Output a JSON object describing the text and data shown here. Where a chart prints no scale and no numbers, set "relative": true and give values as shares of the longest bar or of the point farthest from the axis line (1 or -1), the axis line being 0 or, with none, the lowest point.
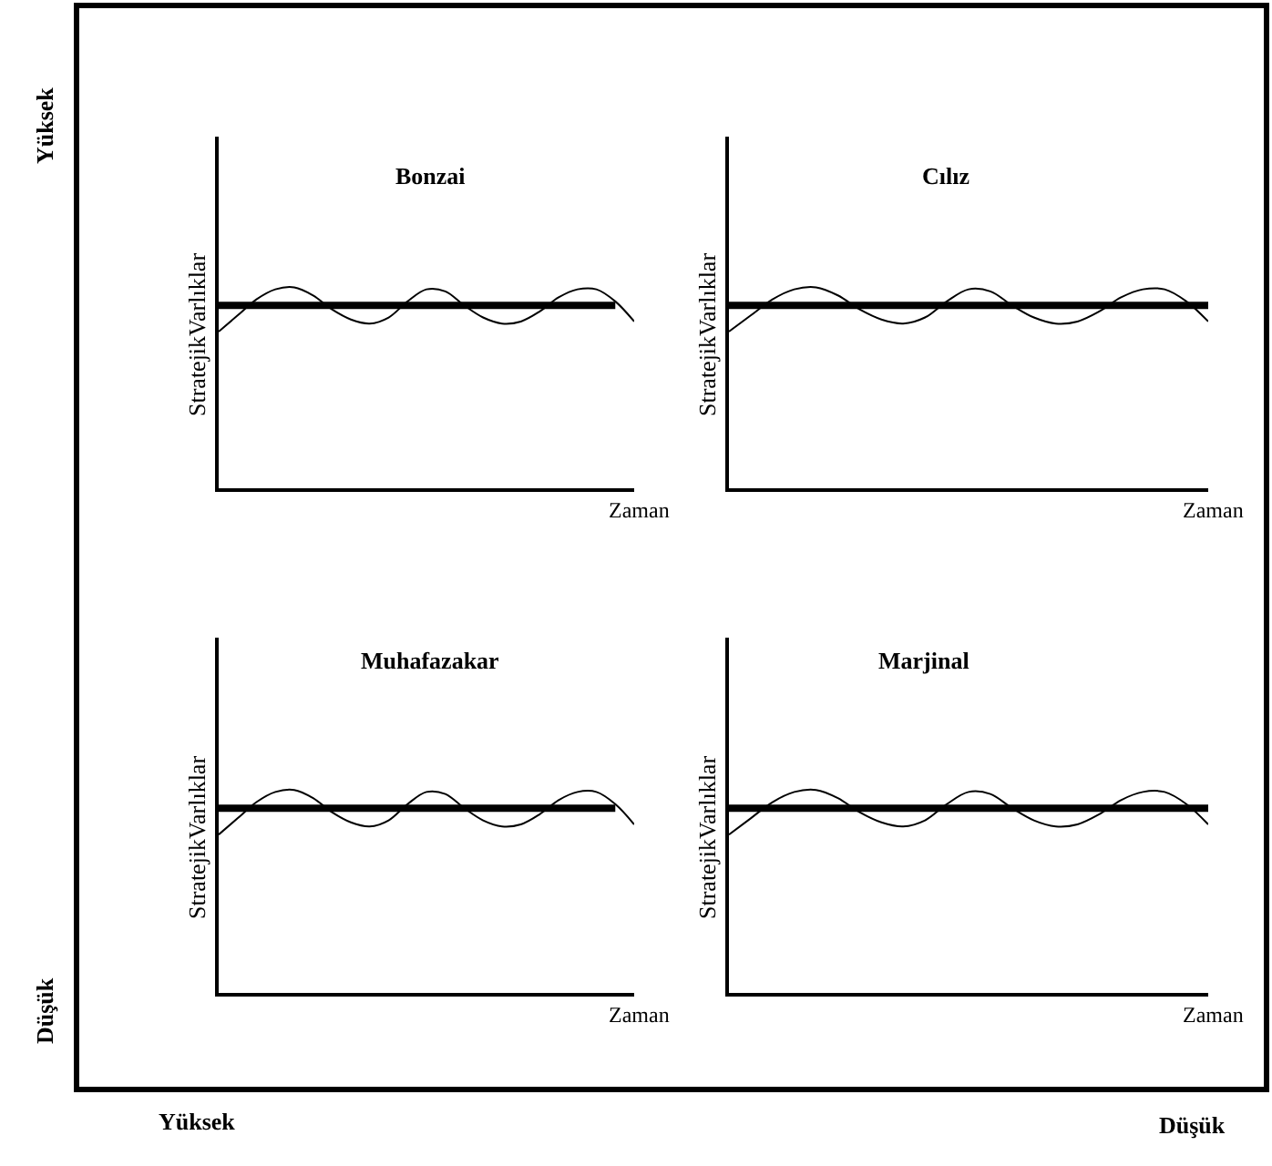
{
  "chart_data": [
    {
      "type": "line",
      "title": "Bonzai",
      "ylabel": "StratejikVarlıklar",
      "xlabel": "Zaman",
      "relative": true,
      "marker": "none",
      "categories": [
        null,
        null,
        null,
        null,
        null,
        null,
        null,
        null,
        null,
        null,
        null,
        null,
        null,
        null,
        null,
        null,
        null,
        null,
        null,
        null,
        null,
        null,
        null
      ],
      "series": [
        {
          "color": "#000000",
          "values": [
            0.91,
            0.91,
            0.91,
            0.91,
            0.91,
            0.91,
            0.91,
            0.91,
            0.91,
            0.91,
            0.91,
            0.91,
            0.91,
            0.91,
            0.91,
            0.91,
            0.91,
            0.91,
            0.91,
            0.91,
            0.91,
            0.91,
            null
          ]
        },
        {
          "color": "#000000",
          "values": [
            0.78,
            0.86,
            0.94,
            0.99,
            1.0,
            0.96,
            0.89,
            0.84,
            0.82,
            0.85,
            0.93,
            0.99,
            0.98,
            0.91,
            0.85,
            0.82,
            0.83,
            0.88,
            0.95,
            0.99,
            0.99,
            0.93,
            0.83
          ]
        }
      ]
    },
    {
      "type": "line",
      "title": "Cılız",
      "ylabel": "StratejikVarlıklar",
      "xlabel": "Zaman",
      "relative": true,
      "marker": "none",
      "categories": [
        null,
        null,
        null,
        null,
        null,
        null,
        null,
        null,
        null,
        null,
        null,
        null,
        null,
        null,
        null,
        null,
        null,
        null,
        null,
        null,
        null,
        null,
        null
      ],
      "series": [
        {
          "color": "#000000",
          "values": [
            0.91,
            0.91,
            0.91,
            0.91,
            0.91,
            0.91,
            0.91,
            0.91,
            0.91,
            0.91,
            0.91,
            0.91,
            0.91,
            0.91,
            0.91,
            0.91,
            0.91,
            0.91,
            0.91,
            0.91,
            0.91,
            0.91,
            0.91
          ]
        },
        {
          "color": "#000000",
          "values": [
            0.78,
            0.86,
            0.94,
            0.99,
            1.0,
            0.96,
            0.89,
            0.84,
            0.82,
            0.85,
            0.93,
            0.99,
            0.98,
            0.91,
            0.85,
            0.82,
            0.83,
            0.88,
            0.95,
            0.99,
            0.99,
            0.93,
            0.83
          ]
        }
      ]
    },
    {
      "type": "line",
      "title": "Muhafazakar",
      "ylabel": "StratejikVarlıklar",
      "xlabel": "Zaman",
      "relative": true,
      "marker": "none",
      "categories": [
        null,
        null,
        null,
        null,
        null,
        null,
        null,
        null,
        null,
        null,
        null,
        null,
        null,
        null,
        null,
        null,
        null,
        null,
        null,
        null,
        null,
        null,
        null
      ],
      "series": [
        {
          "color": "#000000",
          "values": [
            0.91,
            0.91,
            0.91,
            0.91,
            0.91,
            0.91,
            0.91,
            0.91,
            0.91,
            0.91,
            0.91,
            0.91,
            0.91,
            0.91,
            0.91,
            0.91,
            0.91,
            0.91,
            0.91,
            0.91,
            0.91,
            0.91,
            null
          ]
        },
        {
          "color": "#000000",
          "values": [
            0.78,
            0.86,
            0.94,
            0.99,
            1.0,
            0.96,
            0.89,
            0.84,
            0.82,
            0.85,
            0.93,
            0.99,
            0.98,
            0.91,
            0.85,
            0.82,
            0.83,
            0.88,
            0.95,
            0.99,
            0.99,
            0.93,
            0.83
          ]
        }
      ]
    },
    {
      "type": "line",
      "title": "Marjinal",
      "ylabel": "StratejikVarlıklar",
      "xlabel": "Zaman",
      "relative": true,
      "marker": "none",
      "categories": [
        null,
        null,
        null,
        null,
        null,
        null,
        null,
        null,
        null,
        null,
        null,
        null,
        null,
        null,
        null,
        null,
        null,
        null,
        null,
        null,
        null,
        null,
        null
      ],
      "series": [
        {
          "color": "#000000",
          "values": [
            0.91,
            0.91,
            0.91,
            0.91,
            0.91,
            0.91,
            0.91,
            0.91,
            0.91,
            0.91,
            0.91,
            0.91,
            0.91,
            0.91,
            0.91,
            0.91,
            0.91,
            0.91,
            0.91,
            0.91,
            0.91,
            0.91,
            0.91
          ]
        },
        {
          "color": "#000000",
          "values": [
            0.78,
            0.86,
            0.94,
            0.99,
            1.0,
            0.96,
            0.89,
            0.84,
            0.82,
            0.85,
            0.93,
            0.99,
            0.98,
            0.91,
            0.85,
            0.82,
            0.83,
            0.88,
            0.95,
            0.99,
            0.99,
            0.93,
            0.83
          ]
        }
      ]
    },
    {
      "type": "other",
      "annotations": [
        "Yüksek",
        "Düşük",
        "Yüksek",
        "Düşük"
      ]
    }
  ]
}
